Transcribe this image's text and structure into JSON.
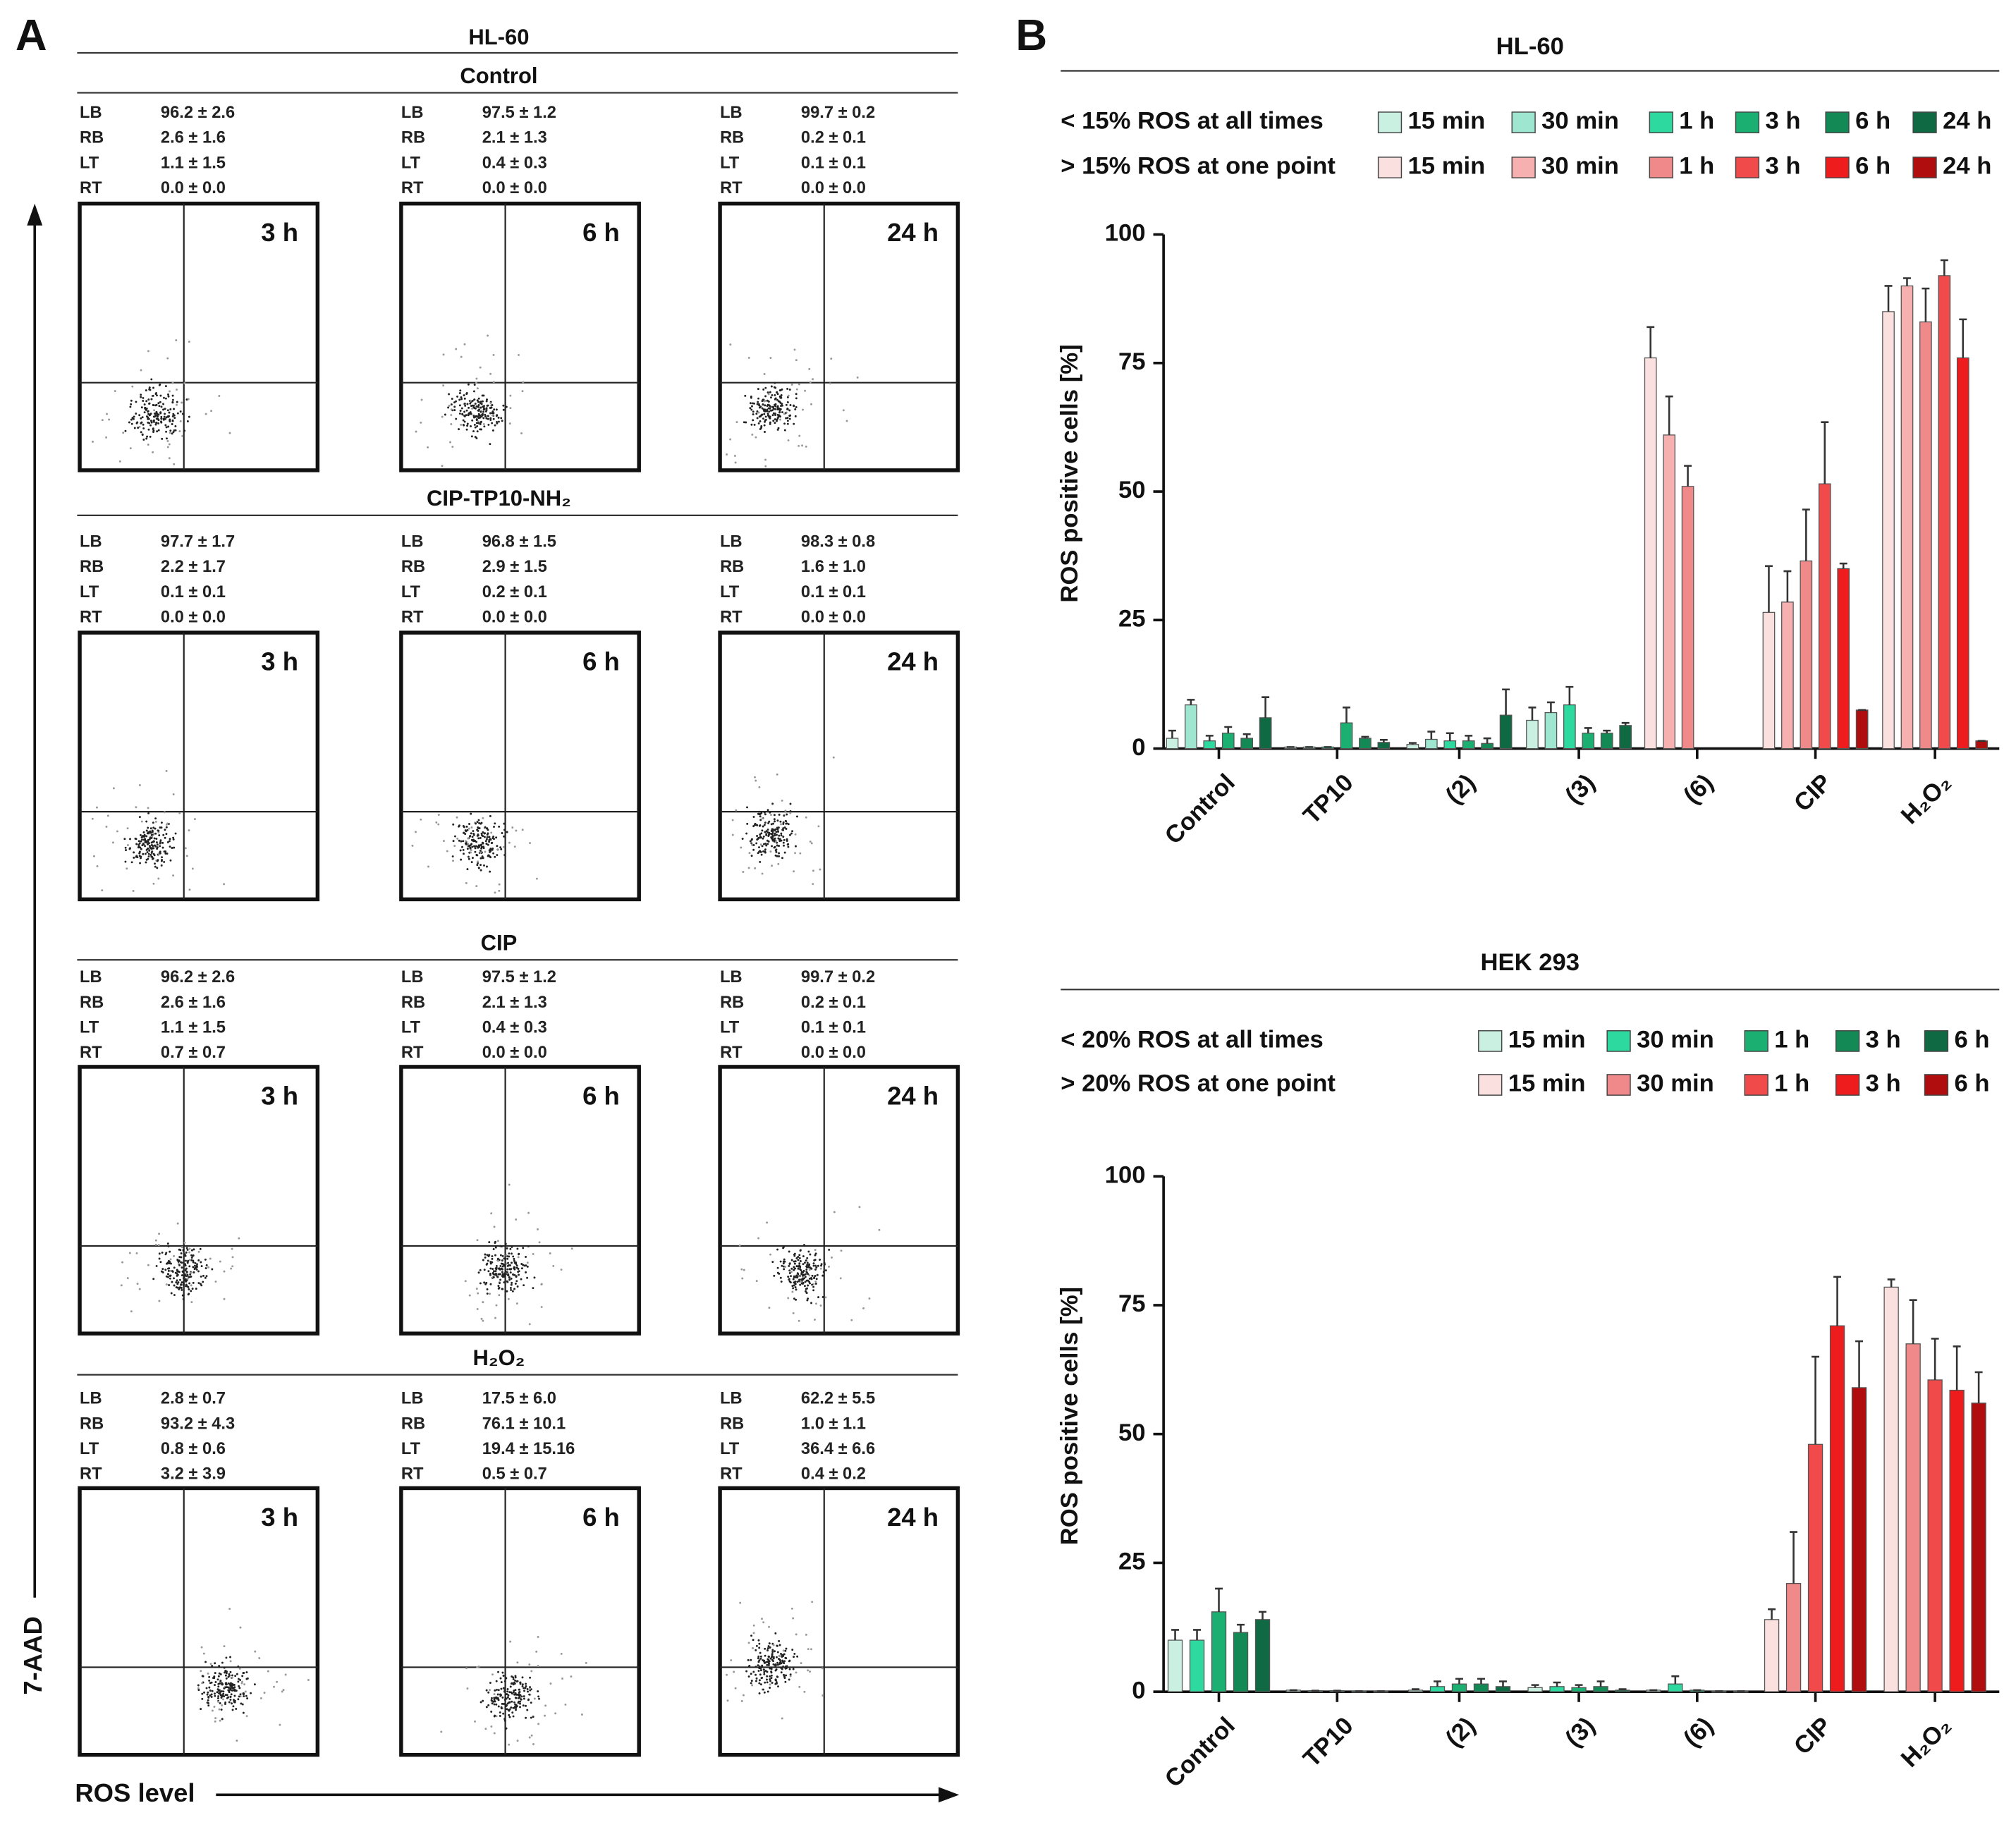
{
  "panel_a": {
    "label": "A",
    "title": "HL-60",
    "y_axis_label": "7-AAD",
    "x_axis_label": "ROS level",
    "quadrants": [
      "LB",
      "RB",
      "LT",
      "RT"
    ],
    "times": [
      "3 h",
      "6 h",
      "24 h"
    ],
    "groups": [
      {
        "name": "Control",
        "plots": [
          [
            "96.2 ± 2.6",
            "2.6 ± 1.6",
            "1.1 ± 1.5",
            "0.0 ± 0.0"
          ],
          [
            "97.5 ± 1.2",
            "2.1 ± 1.3",
            "0.4 ± 0.3",
            "0.0 ± 0.0"
          ],
          [
            "99.7 ± 0.2",
            "0.2 ± 0.1",
            "0.1 ± 0.1",
            "0.0 ± 0.0"
          ]
        ]
      },
      {
        "name": "CIP-TP10-NH₂",
        "plots": [
          [
            "97.7 ± 1.7",
            "2.2 ± 1.7",
            "0.1 ± 0.1",
            "0.0 ± 0.0"
          ],
          [
            "96.8 ± 1.5",
            "2.9 ± 1.5",
            "0.2 ± 0.1",
            "0.0 ± 0.0"
          ],
          [
            "98.3 ± 0.8",
            "1.6 ± 1.0",
            "0.1 ± 0.1",
            "0.0 ± 0.0"
          ]
        ]
      },
      {
        "name": "CIP",
        "plots": [
          [
            "96.2 ± 2.6",
            "2.6 ± 1.6",
            "1.1 ± 1.5",
            "0.7 ± 0.7"
          ],
          [
            "97.5 ± 1.2",
            "2.1 ± 1.3",
            "0.4 ± 0.3",
            "0.0 ± 0.0"
          ],
          [
            "99.7 ± 0.2",
            "0.2 ± 0.1",
            "0.1 ± 0.1",
            "0.0 ± 0.0"
          ]
        ]
      },
      {
        "name": "H₂O₂",
        "plots": [
          [
            "2.8 ± 0.7",
            "93.2 ± 4.3",
            "0.8 ± 0.6",
            "3.2 ± 3.9"
          ],
          [
            "17.5 ± 6.0",
            "76.1 ± 10.1",
            "19.4 ± 15.16",
            "0.5 ± 0.7"
          ],
          [
            "62.2 ± 5.5",
            "1.0 ± 1.1",
            "36.4 ± 6.6",
            "0.4 ± 0.2"
          ]
        ]
      }
    ]
  },
  "panel_b_label": "B",
  "chart_data": [
    {
      "type": "bar",
      "title": "HL-60",
      "y_label": "ROS positive cells [%]",
      "categories": [
        "Control",
        "TP10",
        "(2)",
        "(3)",
        "(6)",
        "CIP",
        "H₂O₂"
      ],
      "ylim": [
        0,
        100
      ],
      "yticks": [
        0,
        25,
        50,
        75,
        100
      ],
      "series_groups": [
        {
          "name": "< 15% ROS at all times",
          "series": [
            {
              "name": "15 min",
              "color": "#c9f0e0",
              "values": [
                2,
                0.3,
                0.8,
                5.5,
                null,
                null,
                null
              ],
              "errors": [
                1.5,
                0,
                0.3,
                2.5,
                null,
                null,
                null
              ]
            },
            {
              "name": "30 min",
              "color": "#9ee6cf",
              "values": [
                8.5,
                0.3,
                1.8,
                7,
                null,
                null,
                null
              ],
              "errors": [
                1,
                0,
                1.5,
                2,
                null,
                null,
                null
              ]
            },
            {
              "name": "1 h",
              "color": "#2ed9a0",
              "values": [
                1.5,
                0.3,
                1.5,
                8.5,
                null,
                null,
                null
              ],
              "errors": [
                1,
                0,
                1.5,
                3.5,
                null,
                null,
                null
              ]
            },
            {
              "name": "3 h",
              "color": "#1bb071",
              "values": [
                3,
                5,
                1.5,
                3,
                null,
                null,
                null
              ],
              "errors": [
                1.2,
                3,
                1,
                1,
                null,
                null,
                null
              ]
            },
            {
              "name": "6 h",
              "color": "#138a55",
              "values": [
                2,
                2,
                1,
                3,
                null,
                null,
                null
              ],
              "errors": [
                0.8,
                0.3,
                1,
                0.5,
                null,
                null,
                null
              ]
            },
            {
              "name": "24 h",
              "color": "#0f6a44",
              "values": [
                6,
                1.2,
                6.5,
                4.5,
                null,
                null,
                null
              ],
              "errors": [
                4,
                0.5,
                5,
                0.5,
                null,
                null,
                null
              ]
            }
          ]
        },
        {
          "name": "> 15% ROS at one point",
          "series": [
            {
              "name": "15 min",
              "color": "#fbe0e0",
              "values": [
                null,
                null,
                null,
                null,
                76,
                26.5,
                85
              ],
              "errors": [
                null,
                null,
                null,
                null,
                6,
                9,
                5
              ]
            },
            {
              "name": "30 min",
              "color": "#f6b0b0",
              "values": [
                null,
                null,
                null,
                null,
                61,
                28.5,
                90
              ],
              "errors": [
                null,
                null,
                null,
                null,
                7.5,
                6,
                1.5
              ]
            },
            {
              "name": "1 h",
              "color": "#f08a8a",
              "values": [
                null,
                null,
                null,
                null,
                51,
                36.5,
                83
              ],
              "errors": [
                null,
                null,
                null,
                null,
                4,
                10,
                6.5
              ]
            },
            {
              "name": "3 h",
              "color": "#f04a4a",
              "values": [
                null,
                null,
                null,
                null,
                null,
                51.5,
                92
              ],
              "errors": [
                null,
                null,
                null,
                null,
                null,
                12,
                3
              ]
            },
            {
              "name": "6 h",
              "color": "#ee1c1c",
              "values": [
                null,
                null,
                null,
                null,
                null,
                35,
                76
              ],
              "errors": [
                null,
                null,
                null,
                null,
                null,
                1,
                7.5
              ]
            },
            {
              "name": "24 h",
              "color": "#b00e0e",
              "values": [
                null,
                null,
                null,
                null,
                null,
                7.5,
                1.5
              ],
              "errors": [
                null,
                null,
                null,
                null,
                null,
                0,
                0
              ]
            }
          ]
        }
      ]
    },
    {
      "type": "bar",
      "title": "HEK 293",
      "y_label": "ROS positive cells [%]",
      "categories": [
        "Control",
        "TP10",
        "(2)",
        "(3)",
        "(6)",
        "CIP",
        "H₂O₂"
      ],
      "ylim": [
        0,
        100
      ],
      "yticks": [
        0,
        25,
        50,
        75,
        100
      ],
      "series_groups": [
        {
          "name": "< 20% ROS at all times",
          "series": [
            {
              "name": "15 min",
              "color": "#c9f0e0",
              "values": [
                10,
                0.3,
                0.3,
                0.8,
                0.3,
                null,
                null
              ],
              "errors": [
                2,
                0,
                0.2,
                0.5,
                0,
                null,
                null
              ]
            },
            {
              "name": "30 min",
              "color": "#2ed9a0",
              "values": [
                10,
                0.2,
                1,
                1,
                1.5,
                null,
                null
              ],
              "errors": [
                2,
                0,
                1,
                0.8,
                1.5,
                null,
                null
              ]
            },
            {
              "name": "1 h",
              "color": "#1bb071",
              "values": [
                15.5,
                0.2,
                1.5,
                0.8,
                0.3,
                null,
                null
              ],
              "errors": [
                4.5,
                0,
                1,
                0.5,
                0,
                null,
                null
              ]
            },
            {
              "name": "3 h",
              "color": "#138a55",
              "values": [
                11.5,
                0.1,
                1.5,
                1,
                0.1,
                null,
                null
              ],
              "errors": [
                1.5,
                0,
                1,
                1,
                0,
                null,
                null
              ]
            },
            {
              "name": "6 h",
              "color": "#0f6a44",
              "values": [
                14,
                0.1,
                1,
                0.3,
                0.1,
                null,
                null
              ],
              "errors": [
                1.5,
                0,
                1,
                0.2,
                0,
                null,
                null
              ]
            }
          ]
        },
        {
          "name": "> 20% ROS at one point",
          "series": [
            {
              "name": "15 min",
              "color": "#fbe0e0",
              "values": [
                null,
                null,
                null,
                null,
                null,
                14,
                78.5
              ],
              "errors": [
                null,
                null,
                null,
                null,
                null,
                2,
                1.5
              ]
            },
            {
              "name": "30 min",
              "color": "#f08a8a",
              "values": [
                null,
                null,
                null,
                null,
                null,
                21,
                67.5
              ],
              "errors": [
                null,
                null,
                null,
                null,
                null,
                10,
                8.5
              ]
            },
            {
              "name": "1 h",
              "color": "#f04a4a",
              "values": [
                null,
                null,
                null,
                null,
                null,
                48,
                60.5
              ],
              "errors": [
                null,
                null,
                null,
                null,
                null,
                17,
                8
              ]
            },
            {
              "name": "3 h",
              "color": "#ee1c1c",
              "values": [
                null,
                null,
                null,
                null,
                null,
                71,
                58.5
              ],
              "errors": [
                null,
                null,
                null,
                null,
                null,
                9.5,
                8.5
              ]
            },
            {
              "name": "6 h",
              "color": "#b00e0e",
              "values": [
                null,
                null,
                null,
                null,
                null,
                59,
                56
              ],
              "errors": [
                null,
                null,
                null,
                null,
                null,
                9,
                6
              ]
            }
          ]
        }
      ]
    }
  ]
}
